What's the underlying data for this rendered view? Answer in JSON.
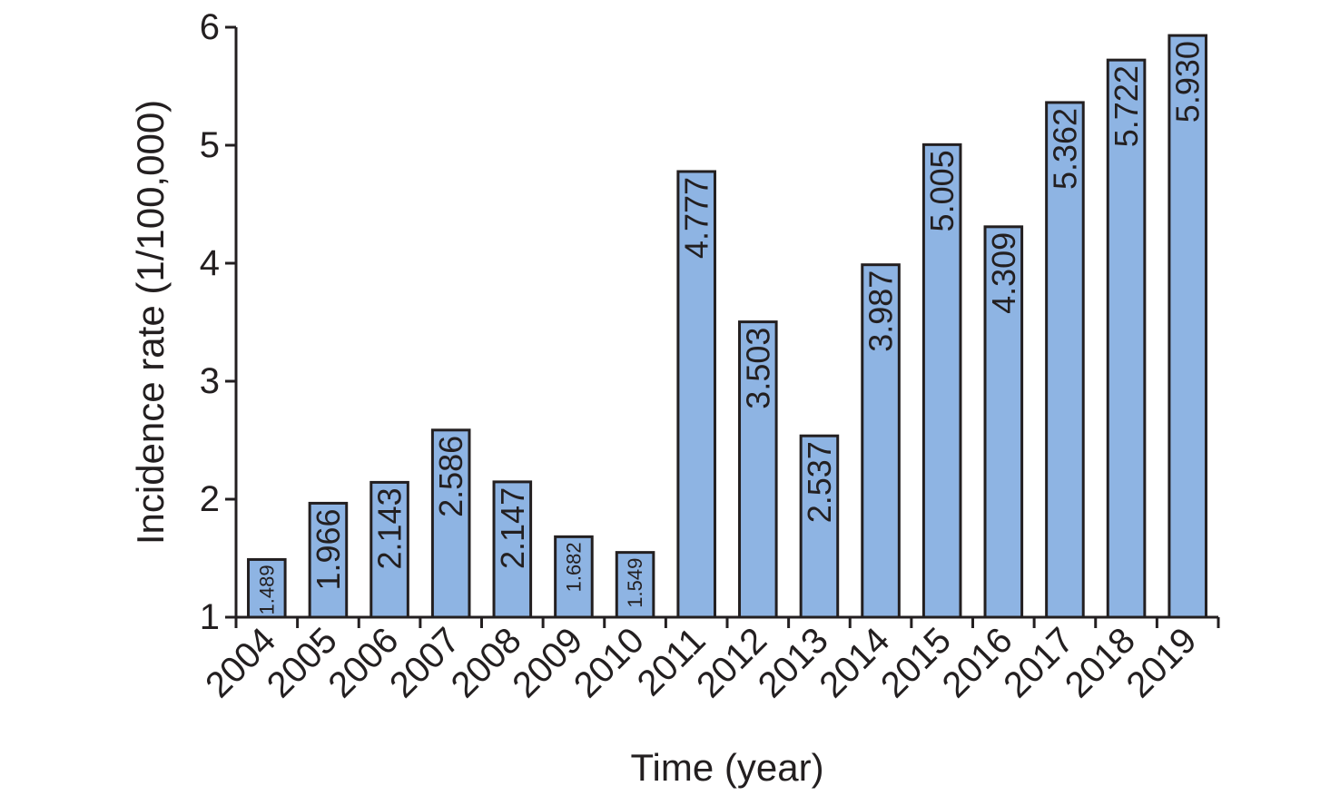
{
  "chart_data": {
    "type": "bar",
    "title": "",
    "xlabel": "Time (year)",
    "ylabel": "Incidence rate (1/100,000)",
    "categories": [
      "2004",
      "2005",
      "2006",
      "2007",
      "2008",
      "2009",
      "2010",
      "2011",
      "2012",
      "2013",
      "2014",
      "2015",
      "2016",
      "2017",
      "2018",
      "2019"
    ],
    "values": [
      1.489,
      1.966,
      2.143,
      2.586,
      2.147,
      1.682,
      1.549,
      4.777,
      3.503,
      2.537,
      3.987,
      5.005,
      4.309,
      5.362,
      5.722,
      5.93
    ],
    "value_labels": [
      "1.489",
      "1.966",
      "2.143",
      "2.586",
      "2.147",
      "1.682",
      "1.549",
      "4.777",
      "3.503",
      "2.537",
      "3.987",
      "5.005",
      "4.309",
      "5.362",
      "5.722",
      "5.930"
    ],
    "ylim": [
      1,
      6
    ],
    "yticks": [
      "1",
      "2",
      "3",
      "4",
      "5",
      "6"
    ],
    "bar_color": "#8eb4e3",
    "grid": false,
    "legend": "none"
  }
}
